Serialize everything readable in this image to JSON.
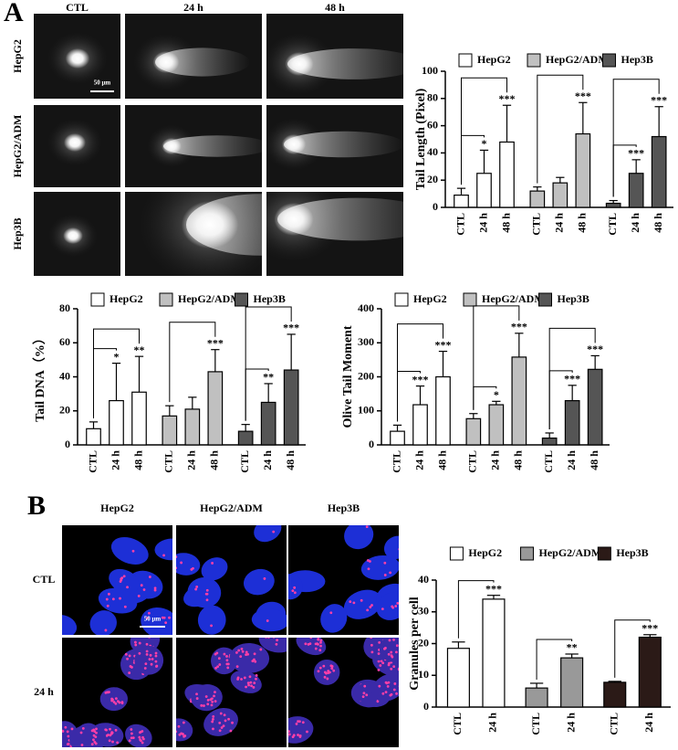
{
  "figure": {
    "panels": [
      "A",
      "B"
    ],
    "comet": {
      "columns": [
        "CTL",
        "24 h",
        "48 h"
      ],
      "rows": [
        "HepG2",
        "HepG2/ADM",
        "Hep3B"
      ],
      "scale_bar": "50 μm"
    },
    "fluorescence": {
      "columns": [
        "HepG2",
        "HepG2/ADM",
        "Hep3B"
      ],
      "rows": [
        "CTL",
        "24 h"
      ],
      "scale_bar": "50 μm"
    }
  },
  "chart_data": [
    {
      "type": "bar",
      "y_label": "Tail Length (Pixel)",
      "categories": [
        "CTL",
        "24 h",
        "48 h"
      ],
      "ylim": [
        0,
        100
      ],
      "yticks": [
        0,
        20,
        40,
        60,
        80,
        100
      ],
      "series": [
        {
          "name": "HepG2",
          "color": "#ffffff",
          "values": [
            9,
            25,
            48
          ],
          "errors": [
            5,
            17,
            27
          ],
          "significance": [
            null,
            "*",
            "***"
          ]
        },
        {
          "name": "HepG2/ADM",
          "color": "#c0c0c0",
          "values": [
            12,
            18,
            54
          ],
          "errors": [
            3,
            4,
            23
          ],
          "significance": [
            null,
            null,
            "***"
          ]
        },
        {
          "name": "Hep3B",
          "color": "#555555",
          "values": [
            3,
            25,
            52
          ],
          "errors": [
            2,
            10,
            22
          ],
          "significance": [
            null,
            "***",
            "***"
          ]
        }
      ]
    },
    {
      "type": "bar",
      "y_label": "Tail DNA（%）",
      "categories": [
        "CTL",
        "24 h",
        "48 h"
      ],
      "ylim": [
        0,
        80
      ],
      "yticks": [
        0,
        20,
        40,
        60,
        80
      ],
      "series": [
        {
          "name": "HepG2",
          "color": "#ffffff",
          "values": [
            9.5,
            26,
            31
          ],
          "errors": [
            4,
            22,
            21
          ],
          "significance": [
            null,
            "*",
            "**"
          ]
        },
        {
          "name": "HepG2/ADM",
          "color": "#c0c0c0",
          "values": [
            17,
            21,
            43
          ],
          "errors": [
            6,
            7,
            13
          ],
          "significance": [
            null,
            null,
            "***"
          ]
        },
        {
          "name": "Hep3B",
          "color": "#555555",
          "values": [
            8,
            25,
            44
          ],
          "errors": [
            4,
            11,
            21
          ],
          "significance": [
            null,
            "**",
            "***"
          ]
        }
      ]
    },
    {
      "type": "bar",
      "y_label": "Olive Tail Moment",
      "categories": [
        "CTL",
        "24 h",
        "48 h"
      ],
      "ylim": [
        0,
        400
      ],
      "yticks": [
        0,
        100,
        200,
        300,
        400
      ],
      "series": [
        {
          "name": "HepG2",
          "color": "#ffffff",
          "values": [
            40,
            118,
            200
          ],
          "errors": [
            18,
            55,
            75
          ],
          "significance": [
            null,
            "***",
            "***"
          ]
        },
        {
          "name": "HepG2/ADM",
          "color": "#c0c0c0",
          "values": [
            77,
            118,
            258
          ],
          "errors": [
            15,
            10,
            70
          ],
          "significance": [
            null,
            "*",
            "***"
          ]
        },
        {
          "name": "Hep3B",
          "color": "#555555",
          "values": [
            20,
            130,
            222
          ],
          "errors": [
            15,
            45,
            40
          ],
          "significance": [
            null,
            "***",
            "***"
          ]
        }
      ]
    },
    {
      "type": "bar",
      "y_label": "Granules per cell",
      "categories": [
        "CTL",
        "24 h"
      ],
      "ylim": [
        0,
        40
      ],
      "yticks": [
        0,
        10,
        20,
        30,
        40
      ],
      "series": [
        {
          "name": "HepG2",
          "color": "#ffffff",
          "values": [
            18.5,
            34
          ],
          "errors": [
            2,
            1.2
          ],
          "significance": [
            null,
            "***"
          ]
        },
        {
          "name": "HepG2/ADM",
          "color": "#999999",
          "values": [
            6,
            15.5
          ],
          "errors": [
            1.5,
            1.2
          ],
          "significance": [
            null,
            "**"
          ]
        },
        {
          "name": "Hep3B",
          "color": "#2b1a17",
          "values": [
            7.8,
            22
          ],
          "errors": [
            0.3,
            0.8
          ],
          "significance": [
            null,
            "***"
          ]
        }
      ]
    }
  ]
}
